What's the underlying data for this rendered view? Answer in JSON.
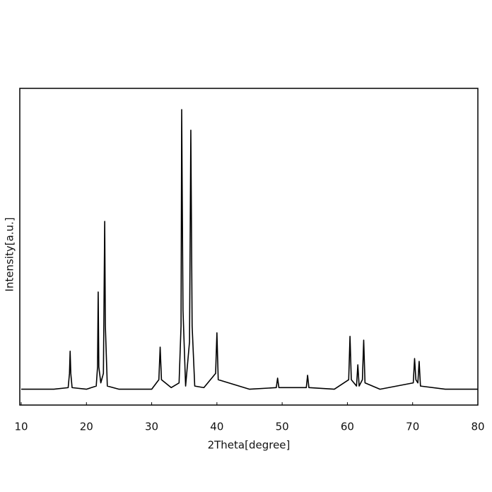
{
  "chart_data": {
    "type": "line",
    "xlabel": "2Theta[degree]",
    "ylabel": "Intensity[a.u.]",
    "x": [
      10,
      15,
      17.2,
      17.4,
      17.5,
      17.6,
      17.8,
      20,
      21.5,
      21.7,
      21.8,
      21.9,
      22.2,
      22.6,
      22.8,
      22.9,
      23.2,
      25,
      30,
      31.1,
      31.3,
      31.5,
      33,
      34.2,
      34.5,
      34.6,
      34.8,
      35.2,
      35.8,
      36.0,
      36.2,
      36.6,
      38,
      39.8,
      40.0,
      40.2,
      45,
      49.1,
      49.3,
      49.5,
      53.7,
      53.9,
      54.1,
      58,
      60.2,
      60.4,
      60.6,
      61.4,
      61.6,
      61.8,
      62.3,
      62.5,
      62.7,
      65,
      70.1,
      70.3,
      70.5,
      70.8,
      71.0,
      71.2,
      75,
      80
    ],
    "series": [
      {
        "color": "#000000",
        "values": [
          5,
          5,
          5.5,
          10,
          17,
          10,
          5.5,
          5,
          6,
          12,
          35.7,
          12,
          7,
          10,
          58,
          25,
          6,
          5,
          5,
          8,
          18.3,
          8,
          5.5,
          7,
          25,
          93.3,
          30,
          6,
          20,
          86.8,
          25,
          6,
          5.5,
          10,
          22.8,
          8,
          5,
          5.5,
          8.5,
          5.5,
          5.5,
          9.4,
          5.5,
          5,
          8,
          21.7,
          8,
          6,
          12.7,
          6,
          8,
          20.5,
          7,
          5,
          7,
          14.7,
          8,
          7,
          13.8,
          6,
          5,
          5
        ]
      }
    ],
    "xlim": [
      10,
      80
    ],
    "xticks": [
      10,
      20,
      30,
      40,
      50,
      60,
      70,
      80
    ],
    "ylim": [
      0,
      100
    ]
  }
}
